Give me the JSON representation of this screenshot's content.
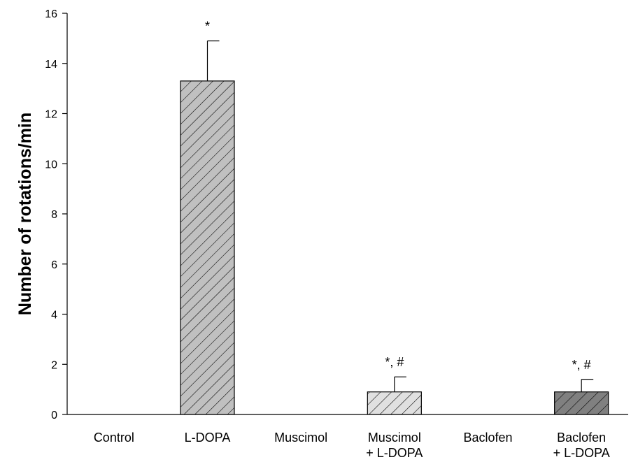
{
  "chart_data": {
    "type": "bar",
    "title": "",
    "xlabel": "",
    "ylabel": "Number of rotations/min",
    "ylim": [
      0,
      16
    ],
    "yticks": [
      0,
      2,
      4,
      6,
      8,
      10,
      12,
      14,
      16
    ],
    "grid": false,
    "categories": [
      [
        "Control"
      ],
      [
        "L-DOPA"
      ],
      [
        "Muscimol"
      ],
      [
        "Muscimol",
        "+ L-DOPA"
      ],
      [
        "Baclofen"
      ],
      [
        "Baclofen",
        "+ L-DOPA"
      ]
    ],
    "values": [
      0,
      13.3,
      0,
      0.9,
      0,
      0.9
    ],
    "errors": [
      0,
      1.6,
      0,
      0.6,
      0,
      0.5
    ],
    "annotations": [
      "",
      "*",
      "",
      "*, #",
      "",
      "*, #"
    ],
    "bar_fills": [
      "#c0c0c0",
      "#c0c0c0",
      "#c0c0c0",
      "#e0e0e0",
      "#c0c0c0",
      "#808080"
    ]
  }
}
